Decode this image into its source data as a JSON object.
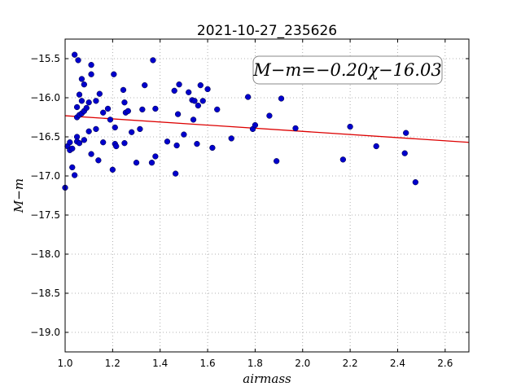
{
  "chart_data": {
    "type": "scatter",
    "title": "2021-10-27_235626",
    "xlabel": "airmass",
    "ylabel": "M−m",
    "xlim": [
      1.0,
      2.7
    ],
    "ylim": [
      -19.25,
      -15.25
    ],
    "y_inverted": true,
    "grid": true,
    "x_ticks": [
      1.0,
      1.2,
      1.4,
      1.6,
      1.8,
      2.0,
      2.2,
      2.4,
      2.6
    ],
    "x_tick_labels": [
      "1.0",
      "1.2",
      "1.4",
      "1.6",
      "1.8",
      "2.0",
      "2.2",
      "2.4",
      "2.6"
    ],
    "y_ticks": [
      -15.5,
      -16.0,
      -16.5,
      -17.0,
      -17.5,
      -18.0,
      -18.5,
      -19.0
    ],
    "y_tick_labels": [
      "−15.5",
      "−16.0",
      "−16.5",
      "−17.0",
      "−17.5",
      "−18.0",
      "−18.5",
      "−19.0"
    ],
    "annotation": "M−m=−0.20χ−16.03",
    "annotation_position": "top-right",
    "point_color": "#0000cc",
    "fit_line_color": "#dd0000",
    "fit_line": {
      "slope": -0.2,
      "intercept": -16.03
    },
    "points": [
      {
        "x": 1.0,
        "y": -17.15
      },
      {
        "x": 1.01,
        "y": -16.62
      },
      {
        "x": 1.02,
        "y": -16.57
      },
      {
        "x": 1.02,
        "y": -16.67
      },
      {
        "x": 1.03,
        "y": -16.65
      },
      {
        "x": 1.03,
        "y": -16.89
      },
      {
        "x": 1.04,
        "y": -15.45
      },
      {
        "x": 1.04,
        "y": -16.99
      },
      {
        "x": 1.05,
        "y": -16.5
      },
      {
        "x": 1.05,
        "y": -16.56
      },
      {
        "x": 1.05,
        "y": -16.25
      },
      {
        "x": 1.05,
        "y": -16.12
      },
      {
        "x": 1.055,
        "y": -15.52
      },
      {
        "x": 1.06,
        "y": -15.96
      },
      {
        "x": 1.06,
        "y": -16.58
      },
      {
        "x": 1.06,
        "y": -16.22
      },
      {
        "x": 1.07,
        "y": -16.04
      },
      {
        "x": 1.07,
        "y": -16.2
      },
      {
        "x": 1.07,
        "y": -15.76
      },
      {
        "x": 1.08,
        "y": -15.83
      },
      {
        "x": 1.08,
        "y": -16.17
      },
      {
        "x": 1.08,
        "y": -16.54
      },
      {
        "x": 1.09,
        "y": -16.13
      },
      {
        "x": 1.1,
        "y": -16.06
      },
      {
        "x": 1.1,
        "y": -16.43
      },
      {
        "x": 1.11,
        "y": -15.58
      },
      {
        "x": 1.11,
        "y": -15.7
      },
      {
        "x": 1.11,
        "y": -16.72
      },
      {
        "x": 1.13,
        "y": -16.04
      },
      {
        "x": 1.13,
        "y": -16.4
      },
      {
        "x": 1.14,
        "y": -16.8
      },
      {
        "x": 1.145,
        "y": -15.95
      },
      {
        "x": 1.16,
        "y": -16.19
      },
      {
        "x": 1.16,
        "y": -16.57
      },
      {
        "x": 1.18,
        "y": -16.14
      },
      {
        "x": 1.19,
        "y": -16.28
      },
      {
        "x": 1.2,
        "y": -16.92
      },
      {
        "x": 1.205,
        "y": -15.7
      },
      {
        "x": 1.21,
        "y": -16.38
      },
      {
        "x": 1.21,
        "y": -16.59
      },
      {
        "x": 1.215,
        "y": -16.62
      },
      {
        "x": 1.245,
        "y": -15.9
      },
      {
        "x": 1.25,
        "y": -16.06
      },
      {
        "x": 1.25,
        "y": -16.58
      },
      {
        "x": 1.255,
        "y": -16.19
      },
      {
        "x": 1.265,
        "y": -16.17
      },
      {
        "x": 1.28,
        "y": -16.44
      },
      {
        "x": 1.3,
        "y": -16.83
      },
      {
        "x": 1.315,
        "y": -16.4
      },
      {
        "x": 1.325,
        "y": -16.15
      },
      {
        "x": 1.335,
        "y": -15.84
      },
      {
        "x": 1.365,
        "y": -16.83
      },
      {
        "x": 1.37,
        "y": -15.52
      },
      {
        "x": 1.38,
        "y": -16.75
      },
      {
        "x": 1.38,
        "y": -16.14
      },
      {
        "x": 1.43,
        "y": -16.56
      },
      {
        "x": 1.46,
        "y": -15.91
      },
      {
        "x": 1.465,
        "y": -16.97
      },
      {
        "x": 1.47,
        "y": -16.61
      },
      {
        "x": 1.475,
        "y": -16.21
      },
      {
        "x": 1.48,
        "y": -15.83
      },
      {
        "x": 1.5,
        "y": -16.47
      },
      {
        "x": 1.52,
        "y": -15.93
      },
      {
        "x": 1.535,
        "y": -16.03
      },
      {
        "x": 1.54,
        "y": -16.28
      },
      {
        "x": 1.545,
        "y": -16.04
      },
      {
        "x": 1.555,
        "y": -16.59
      },
      {
        "x": 1.56,
        "y": -16.1
      },
      {
        "x": 1.57,
        "y": -15.84
      },
      {
        "x": 1.58,
        "y": -16.04
      },
      {
        "x": 1.6,
        "y": -15.89
      },
      {
        "x": 1.62,
        "y": -16.64
      },
      {
        "x": 1.64,
        "y": -16.15
      },
      {
        "x": 1.7,
        "y": -16.52
      },
      {
        "x": 1.77,
        "y": -15.99
      },
      {
        "x": 1.79,
        "y": -16.4
      },
      {
        "x": 1.8,
        "y": -16.35
      },
      {
        "x": 1.86,
        "y": -16.23
      },
      {
        "x": 1.89,
        "y": -16.81
      },
      {
        "x": 1.91,
        "y": -16.01
      },
      {
        "x": 1.97,
        "y": -16.39
      },
      {
        "x": 2.17,
        "y": -16.79
      },
      {
        "x": 2.2,
        "y": -16.37
      },
      {
        "x": 2.31,
        "y": -16.62
      },
      {
        "x": 2.43,
        "y": -16.71
      },
      {
        "x": 2.435,
        "y": -16.45
      },
      {
        "x": 2.475,
        "y": -17.08
      }
    ]
  }
}
